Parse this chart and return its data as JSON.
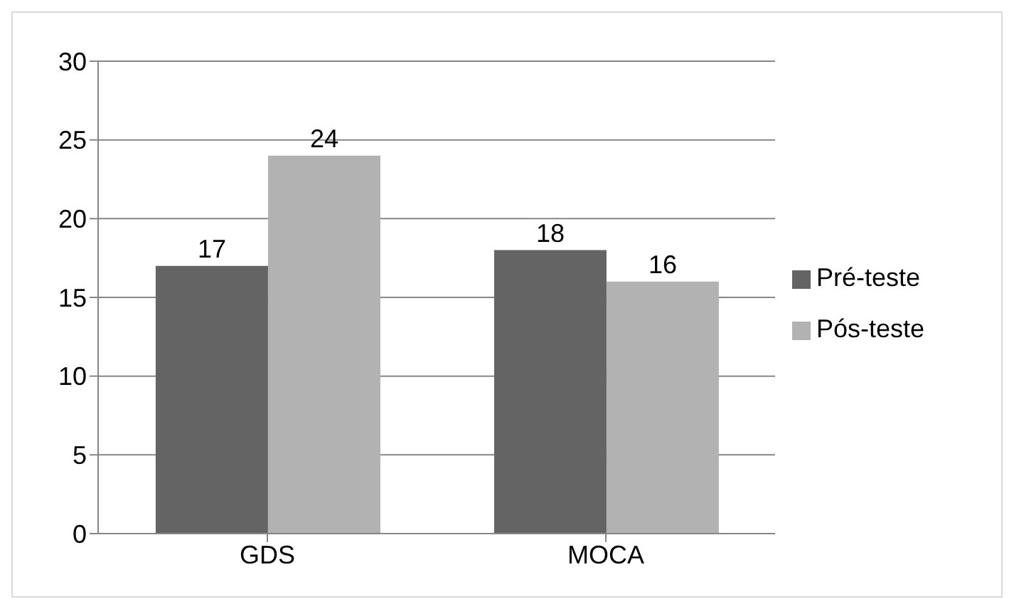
{
  "chart_data": {
    "type": "bar",
    "categories": [
      "GDS",
      "MOCA"
    ],
    "series": [
      {
        "name": "Pré-teste",
        "color": "#646464",
        "values": [
          17,
          18
        ]
      },
      {
        "name": "Pós-teste",
        "color": "#b2b2b2",
        "values": [
          24,
          16
        ]
      }
    ],
    "ylim": [
      0,
      30
    ],
    "yticks": [
      0,
      5,
      10,
      15,
      20,
      25,
      30
    ],
    "grid": "y",
    "legend": "right",
    "data_labels": true
  }
}
